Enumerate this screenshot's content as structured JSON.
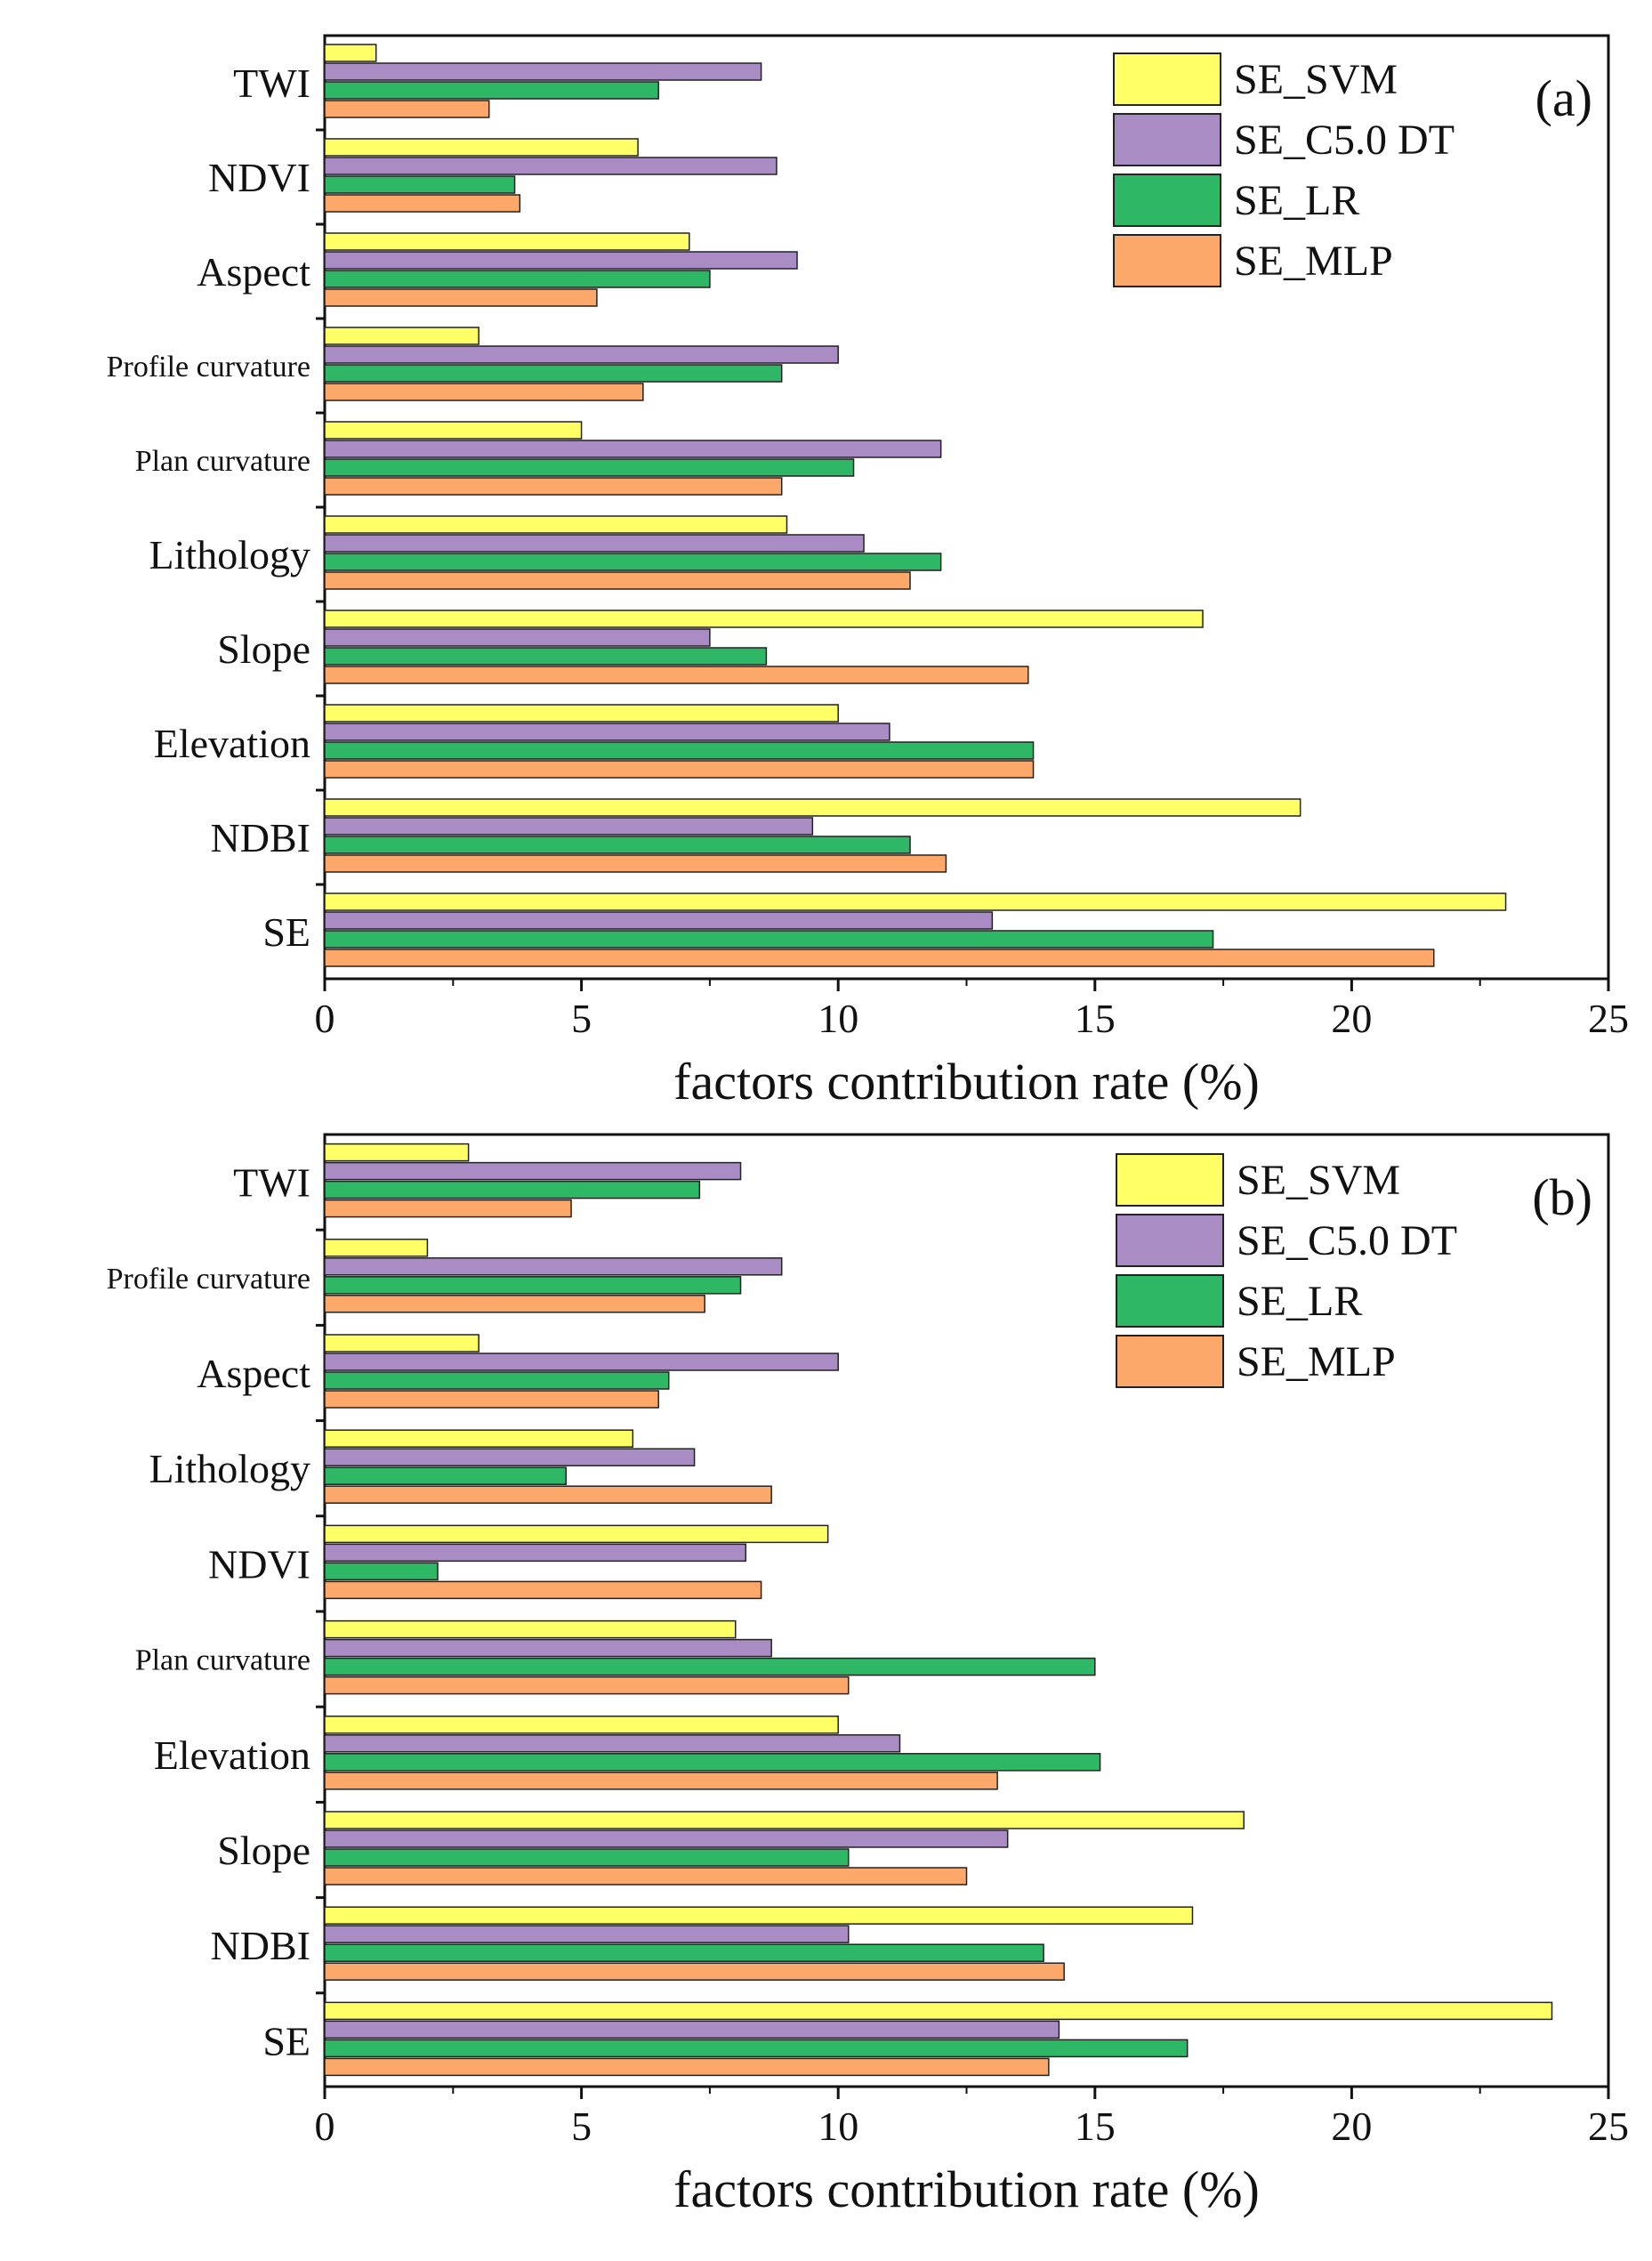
{
  "chart_data": [
    {
      "panel_label": "(a)",
      "type": "bar",
      "orientation": "horizontal",
      "categories": [
        "TWI",
        "NDVI",
        "Aspect",
        "Profile curvature",
        "Plan curvature",
        "Lithology",
        "Slope",
        "Elevation",
        "NDBI",
        "SE"
      ],
      "series": [
        {
          "name": "SE_SVM",
          "values": [
            1.0,
            6.1,
            7.1,
            3.0,
            5.0,
            9.0,
            17.1,
            10.0,
            19.0,
            23.0
          ]
        },
        {
          "name": "SE_C5.0 DT",
          "values": [
            8.5,
            8.8,
            9.2,
            10.0,
            12.0,
            10.5,
            7.5,
            11.0,
            9.5,
            13.0
          ]
        },
        {
          "name": "SE_LR",
          "values": [
            6.5,
            3.7,
            7.5,
            8.9,
            10.3,
            12.0,
            8.6,
            13.8,
            11.4,
            17.3
          ]
        },
        {
          "name": "SE_MLP",
          "values": [
            3.2,
            3.8,
            5.3,
            6.2,
            8.9,
            11.4,
            13.7,
            13.8,
            12.1,
            21.6
          ]
        }
      ],
      "title": "",
      "xlabel": "factors contribution rate (%)",
      "ylabel": "",
      "xlim": [
        0,
        25
      ],
      "xticks": [
        "0",
        "5",
        "10",
        "15",
        "20",
        "25"
      ],
      "legend_position": "top-right"
    },
    {
      "panel_label": "(b)",
      "type": "bar",
      "orientation": "horizontal",
      "categories": [
        "TWI",
        "Profile curvature",
        "Aspect",
        "Lithology",
        "NDVI",
        "Plan curvature",
        "Elevation",
        "Slope",
        "NDBI",
        "SE"
      ],
      "series": [
        {
          "name": "SE_SVM",
          "values": [
            2.8,
            2.0,
            3.0,
            6.0,
            9.8,
            8.0,
            10.0,
            17.9,
            16.9,
            23.9
          ]
        },
        {
          "name": "SE_C5.0 DT",
          "values": [
            8.1,
            8.9,
            10.0,
            7.2,
            8.2,
            8.7,
            11.2,
            13.3,
            10.2,
            14.3
          ]
        },
        {
          "name": "SE_LR",
          "values": [
            7.3,
            8.1,
            6.7,
            4.7,
            2.2,
            15.0,
            15.1,
            10.2,
            14.0,
            16.8
          ]
        },
        {
          "name": "SE_MLP",
          "values": [
            4.8,
            7.4,
            6.5,
            8.7,
            8.5,
            10.2,
            13.1,
            12.5,
            14.4,
            14.1
          ]
        }
      ],
      "title": "",
      "xlabel": "factors contribution rate (%)",
      "ylabel": "",
      "xlim": [
        0,
        25
      ],
      "xticks": [
        "0",
        "5",
        "10",
        "15",
        "20",
        "25"
      ],
      "legend_position": "top-right"
    }
  ],
  "colors": {
    "SE_SVM": "#ffff66",
    "SE_C5.0 DT": "#a98cc4",
    "SE_LR": "#2eb866",
    "SE_MLP": "#fba86a",
    "axis": "#111111",
    "bar_stroke": "#222222"
  }
}
